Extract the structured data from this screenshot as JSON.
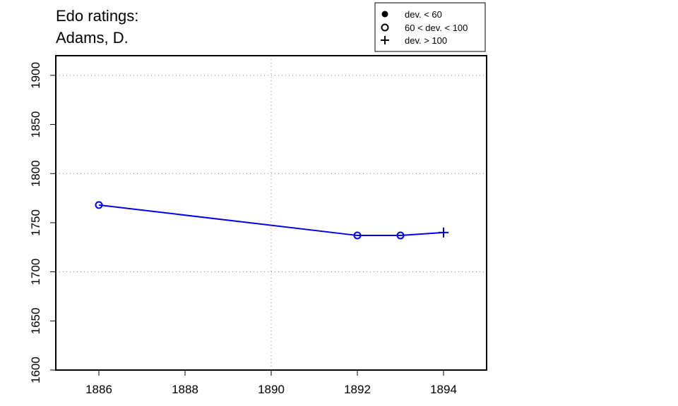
{
  "chart_data": {
    "type": "line",
    "title": [
      "Edo ratings:",
      "Adams, D."
    ],
    "xlabel": "",
    "ylabel": "",
    "xlim": [
      1885,
      1895
    ],
    "ylim": [
      1600,
      1920
    ],
    "x_ticks": [
      1886,
      1888,
      1890,
      1892,
      1894
    ],
    "y_ticks": [
      1600,
      1650,
      1700,
      1750,
      1800,
      1850,
      1900
    ],
    "grid": true,
    "grid_x": [
      1885,
      1890,
      1895
    ],
    "grid_y": [
      1600,
      1700,
      1800,
      1900
    ],
    "legend": {
      "placement": "top-right",
      "entries": [
        {
          "symbol": "filled-circle",
          "label": "dev. < 60"
        },
        {
          "symbol": "open-circle",
          "label": "60 < dev. < 100"
        },
        {
          "symbol": "plus",
          "label": "dev. > 100"
        }
      ]
    },
    "series": [
      {
        "color": "#0000ee",
        "points": [
          {
            "x": 1886,
            "y": 1768,
            "symbol": "open-circle"
          },
          {
            "x": 1892,
            "y": 1737,
            "symbol": "open-circle"
          },
          {
            "x": 1893,
            "y": 1737,
            "symbol": "open-circle"
          },
          {
            "x": 1894,
            "y": 1740,
            "symbol": "plus"
          }
        ]
      }
    ]
  }
}
